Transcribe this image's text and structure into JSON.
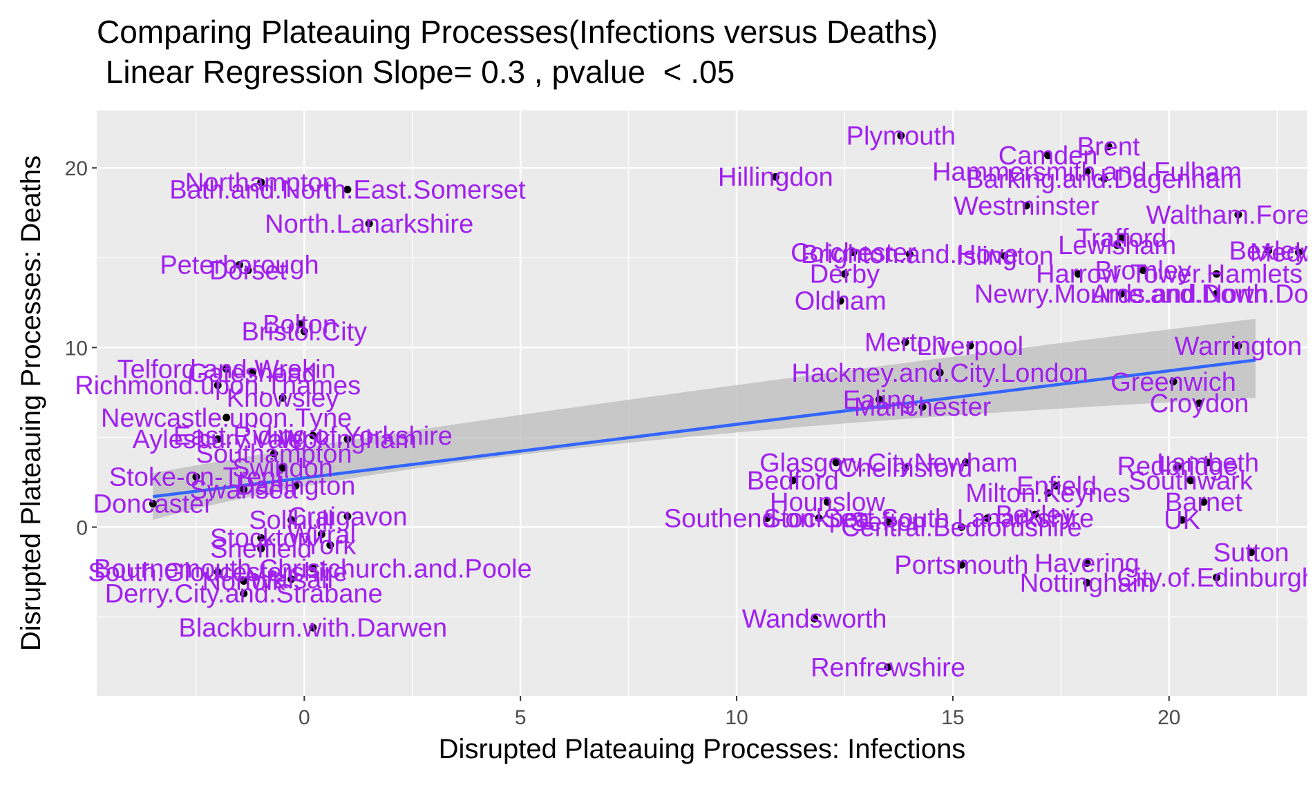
{
  "chart_data": {
    "type": "scatter",
    "title": "Comparing Plateauing Processes(Infections versus Deaths)",
    "subtitle": " Linear Regression Slope= 0.3 , pvalue  < .05",
    "xlabel": "Disrupted Plateauing Processes: Infections",
    "ylabel": "Disrupted Plateauing Processes: Deaths",
    "xlim": [
      -4.8,
      23.2
    ],
    "ylim": [
      -9.4,
      23.2
    ],
    "x_ticks": [
      0,
      5,
      10,
      15,
      20
    ],
    "x_tick_labels": [
      "0",
      "5",
      "10",
      "15",
      "20"
    ],
    "y_ticks": [
      0,
      10,
      20
    ],
    "y_tick_labels": [
      "0",
      "10",
      "20"
    ],
    "grid": true,
    "legend": "none",
    "colors": {
      "panel_background": "#ebebeb",
      "grid_major": "#ffffff",
      "point": "#000000",
      "label": "#a020f0",
      "regression_line": "#3366ff",
      "confidence_band": "#bfbfbf"
    },
    "regression": {
      "slope": 0.3,
      "x": [
        -3.5,
        22
      ],
      "y": [
        1.7,
        9.3
      ],
      "ci_lower": [
        0.4,
        7.2
      ],
      "ci_upper": [
        3.0,
        11.6
      ]
    },
    "points": [
      {
        "label": "Plymouth",
        "x": 13.8,
        "y": 21.8
      },
      {
        "label": "Camden",
        "x": 17.2,
        "y": 20.7
      },
      {
        "label": "Brent",
        "x": 18.6,
        "y": 21.2
      },
      {
        "label": "Hillingdon",
        "x": 10.9,
        "y": 19.5
      },
      {
        "label": "Hammersmith.and.Fulham",
        "x": 18.1,
        "y": 19.8
      },
      {
        "label": "Barking.and.Dagenham",
        "x": 18.5,
        "y": 19.4
      },
      {
        "label": "Westminster",
        "x": 16.7,
        "y": 17.9
      },
      {
        "label": "Waltham.Forest",
        "x": 21.6,
        "y": 17.4
      },
      {
        "label": "Trafford",
        "x": 18.9,
        "y": 16.1
      },
      {
        "label": "Lewisham",
        "x": 18.8,
        "y": 15.7
      },
      {
        "label": "Bexley",
        "x": 22.3,
        "y": 15.4
      },
      {
        "label": "Medway",
        "x": 23.0,
        "y": 15.3
      },
      {
        "label": "Colchester",
        "x": 12.7,
        "y": 15.3
      },
      {
        "label": "Brighton.and.Hove",
        "x": 14.0,
        "y": 15.2
      },
      {
        "label": "Islington",
        "x": 16.2,
        "y": 15.1
      },
      {
        "label": "Bromley",
        "x": 19.4,
        "y": 14.3
      },
      {
        "label": "Harrow",
        "x": 17.9,
        "y": 14.1
      },
      {
        "label": "Tower.Hamlets",
        "x": 21.1,
        "y": 14.1
      },
      {
        "label": "Derby",
        "x": 12.5,
        "y": 14.1
      },
      {
        "label": "Newry.Mourne.and.Down",
        "x": 18.9,
        "y": 13.0
      },
      {
        "label": "Ards.and.North.Down",
        "x": 21.1,
        "y": 13.0
      },
      {
        "label": "Oldham",
        "x": 12.4,
        "y": 12.6
      },
      {
        "label": "Merton",
        "x": 13.9,
        "y": 10.3
      },
      {
        "label": "Liverpool",
        "x": 15.4,
        "y": 10.1
      },
      {
        "label": "Warrington",
        "x": 21.6,
        "y": 10.1
      },
      {
        "label": "Hackney.and.City.London",
        "x": 14.7,
        "y": 8.6
      },
      {
        "label": "Greenwich",
        "x": 20.1,
        "y": 8.1
      },
      {
        "label": "Croydon",
        "x": 20.7,
        "y": 6.9
      },
      {
        "label": "Ealing",
        "x": 13.3,
        "y": 7.1
      },
      {
        "label": "Manchester",
        "x": 14.3,
        "y": 6.7
      },
      {
        "label": "Glasgow.City",
        "x": 12.3,
        "y": 3.6
      },
      {
        "label": "Newham",
        "x": 15.3,
        "y": 3.6
      },
      {
        "label": "Chelmsford",
        "x": 13.9,
        "y": 3.3
      },
      {
        "label": "Bedford",
        "x": 11.3,
        "y": 2.6
      },
      {
        "label": "Lambeth",
        "x": 20.9,
        "y": 3.6
      },
      {
        "label": "Redbridge",
        "x": 20.2,
        "y": 3.4
      },
      {
        "label": "Southwark",
        "x": 20.5,
        "y": 2.6
      },
      {
        "label": "Enfield",
        "x": 17.4,
        "y": 2.3
      },
      {
        "label": "Milton.Keynes",
        "x": 17.2,
        "y": 1.9
      },
      {
        "label": "Barnet",
        "x": 20.8,
        "y": 1.4
      },
      {
        "label": "Hounslow",
        "x": 12.1,
        "y": 1.4
      },
      {
        "label": "UK",
        "x": 20.3,
        "y": 0.4
      },
      {
        "label": "Bexley",
        "x": 16.9,
        "y": 0.7
      },
      {
        "label": "Southend-on-Sea",
        "x": 10.7,
        "y": 0.5
      },
      {
        "label": "Stockport",
        "x": 11.9,
        "y": 0.5
      },
      {
        "label": "South.Lanarkshire",
        "x": 15.8,
        "y": 0.5
      },
      {
        "label": "Sefton",
        "x": 13.5,
        "y": 0.3
      },
      {
        "label": "Central.Bedfordshire",
        "x": 15.2,
        "y": 0.0
      },
      {
        "label": "Portsmouth",
        "x": 15.2,
        "y": -2.1
      },
      {
        "label": "Havering",
        "x": 18.1,
        "y": -2.0
      },
      {
        "label": "Sutton",
        "x": 21.9,
        "y": -1.4
      },
      {
        "label": "Nottingham",
        "x": 18.1,
        "y": -3.1
      },
      {
        "label": "City.of.Edinburgh",
        "x": 21.1,
        "y": -2.8
      },
      {
        "label": "Wandsworth",
        "x": 11.8,
        "y": -5.1
      },
      {
        "label": "Renfrewshire",
        "x": 13.5,
        "y": -7.8
      },
      {
        "label": "Northampton",
        "x": -1.0,
        "y": 19.2
      },
      {
        "label": "Bath.and.North.East.Somerset",
        "x": 1.0,
        "y": 18.8
      },
      {
        "label": "North.Lanarkshire",
        "x": 1.5,
        "y": 16.9
      },
      {
        "label": "Peterborough",
        "x": -1.5,
        "y": 14.6
      },
      {
        "label": "Dorset",
        "x": -1.3,
        "y": 14.3
      },
      {
        "label": "Bolton",
        "x": -0.1,
        "y": 11.3
      },
      {
        "label": "Bristol.City",
        "x": 0.0,
        "y": 10.9
      },
      {
        "label": "Telford.and.Wrekin",
        "x": -1.8,
        "y": 8.8
      },
      {
        "label": "Gateshead",
        "x": -1.2,
        "y": 8.6
      },
      {
        "label": "Richmond.upon.Thames",
        "x": -2.0,
        "y": 7.9
      },
      {
        "label": "Knowsley",
        "x": -0.5,
        "y": 7.2
      },
      {
        "label": "Newcastle.upon.Tyne",
        "x": -1.8,
        "y": 6.1
      },
      {
        "label": "East.Riding.of.Yorkshire",
        "x": 0.2,
        "y": 5.1
      },
      {
        "label": "Aylesbury.Vale",
        "x": -2.0,
        "y": 4.9
      },
      {
        "label": "Wokingham",
        "x": 1.0,
        "y": 4.9
      },
      {
        "label": "Southampton",
        "x": -0.7,
        "y": 4.1
      },
      {
        "label": "Stoke-on-Trent",
        "x": -2.5,
        "y": 2.8
      },
      {
        "label": "Swindon",
        "x": -0.5,
        "y": 3.3
      },
      {
        "label": "Darlington",
        "x": -0.2,
        "y": 2.3
      },
      {
        "label": "Swansea",
        "x": -1.4,
        "y": 2.1
      },
      {
        "label": "Doncaster",
        "x": -3.5,
        "y": 1.3
      },
      {
        "label": "Craigavon",
        "x": 1.0,
        "y": 0.6
      },
      {
        "label": "Solihull",
        "x": -0.3,
        "y": 0.4
      },
      {
        "label": "Wirral",
        "x": 0.4,
        "y": -0.4
      },
      {
        "label": "Stockton",
        "x": -1.0,
        "y": -0.6
      },
      {
        "label": "Sheffield",
        "x": -1.0,
        "y": -1.2
      },
      {
        "label": "York",
        "x": 0.6,
        "y": -1.0
      },
      {
        "label": "Bournemouth.Christchurch.and.Poole",
        "x": 0.2,
        "y": -2.3
      },
      {
        "label": "South.Gloucestershire",
        "x": -2.0,
        "y": -2.5
      },
      {
        "label": "Norfolk",
        "x": -1.4,
        "y": -3.0
      },
      {
        "label": "Walsall",
        "x": -0.3,
        "y": -2.9
      },
      {
        "label": "Derry.City.and.Strabane",
        "x": -1.4,
        "y": -3.7
      },
      {
        "label": "Blackburn.with.Darwen",
        "x": 0.2,
        "y": -5.6
      }
    ]
  }
}
